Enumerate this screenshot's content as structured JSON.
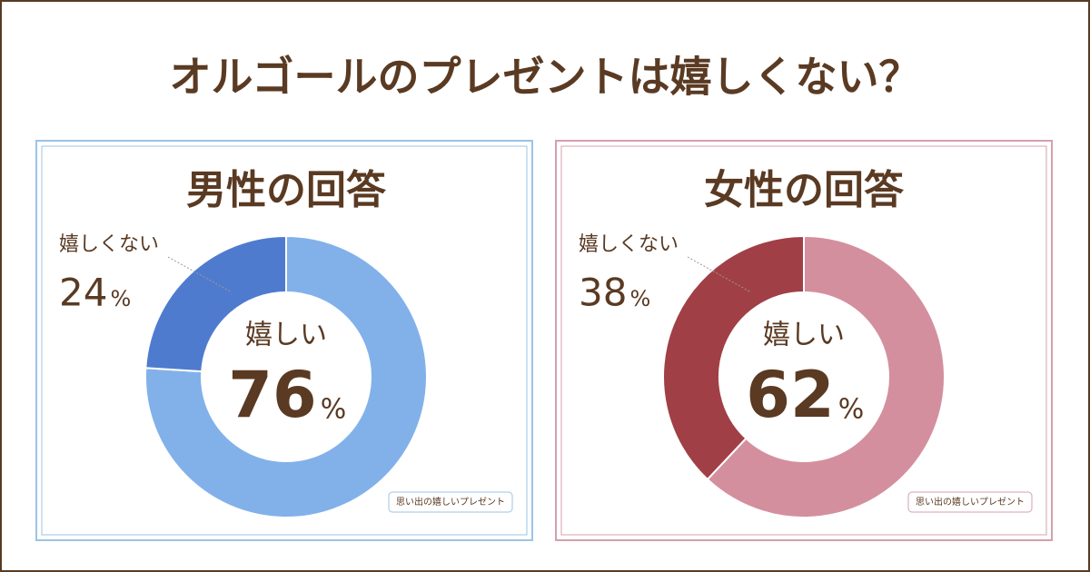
{
  "title": "オルゴールのプレゼントは嬉しくない？",
  "chart_data": [
    {
      "type": "donut",
      "title": "男性の回答",
      "categories": [
        "嬉しい",
        "嬉しくない"
      ],
      "values": [
        76,
        24
      ],
      "unit": "%",
      "colors": [
        "#82b1ea",
        "#4f7bcf"
      ],
      "frame_color": "#9cc3e6",
      "source": "思い出の嬉しいプレゼント"
    },
    {
      "type": "donut",
      "title": "女性の回答",
      "categories": [
        "嬉しい",
        "嬉しくない"
      ],
      "values": [
        62,
        38
      ],
      "unit": "%",
      "colors": [
        "#d48f9e",
        "#a13f46"
      ],
      "frame_color": "#d4a0ad",
      "source": "思い出の嬉しいプレゼント"
    }
  ]
}
